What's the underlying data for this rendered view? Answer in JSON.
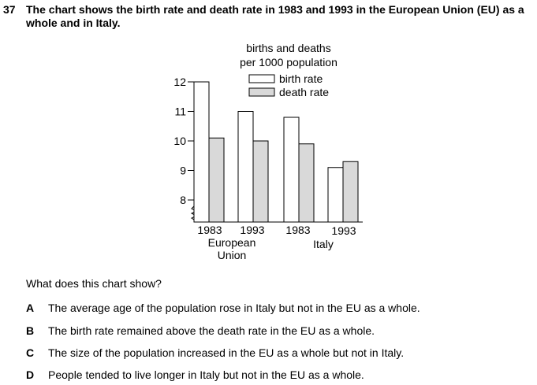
{
  "question": {
    "number": "37",
    "text": "The chart shows the birth rate and death rate in 1983 and 1993 in the European Union (EU) as a whole and in Italy.",
    "prompt": "What does this chart show?",
    "options": [
      {
        "letter": "A",
        "text": "The average age of the population rose in Italy but not in the EU as a whole."
      },
      {
        "letter": "B",
        "text": "The birth rate remained above the death rate in the EU as a whole."
      },
      {
        "letter": "C",
        "text": "The size of the population increased in the EU as a whole but not in Italy."
      },
      {
        "letter": "D",
        "text": "People tended to live longer in Italy but not in the EU as a whole."
      }
    ]
  },
  "chart_data": {
    "type": "bar",
    "title": "births and deaths",
    "subtitle": "per 1000 population",
    "categories": [
      "1983",
      "1993",
      "1983",
      "1993"
    ],
    "groups": [
      {
        "label": "European\nUnion",
        "categories": [
          "1983",
          "1993"
        ]
      },
      {
        "label": "Italy",
        "categories": [
          "1983",
          "1993"
        ]
      }
    ],
    "series": [
      {
        "name": "birth rate",
        "values": [
          12.0,
          11.0,
          10.8,
          9.1
        ],
        "color": "#ffffff"
      },
      {
        "name": "death rate",
        "values": [
          10.1,
          10.0,
          9.9,
          9.3
        ],
        "color": "#d9d9d9"
      }
    ],
    "ylim": [
      8,
      12
    ],
    "yticks": [
      "12",
      "11",
      "10",
      "9",
      "8"
    ],
    "axis_break": true,
    "legend_position": "top-right",
    "grid": false
  }
}
